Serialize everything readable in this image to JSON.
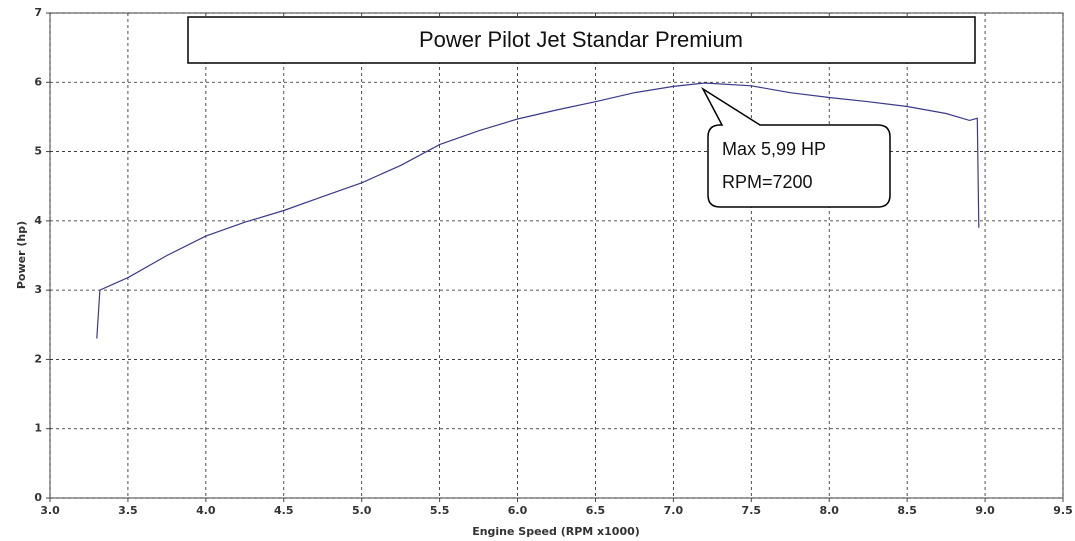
{
  "chart_data": {
    "type": "line",
    "title": "Power Pilot Jet Standar Premium",
    "x_label": "Engine Speed (RPM x1000)",
    "y_label": "Power (hp)",
    "annotation": [
      "Max 5,99 HP",
      "RPM=7200"
    ],
    "x": [
      3.3,
      3.32,
      3.4,
      3.5,
      3.75,
      4.0,
      4.25,
      4.5,
      4.75,
      5.0,
      5.25,
      5.5,
      5.75,
      6.0,
      6.25,
      6.5,
      6.75,
      7.0,
      7.2,
      7.5,
      7.75,
      8.0,
      8.25,
      8.5,
      8.75,
      8.9,
      8.95,
      8.96
    ],
    "values": [
      2.3,
      3.0,
      3.08,
      3.18,
      3.5,
      3.78,
      3.98,
      4.15,
      4.35,
      4.55,
      4.8,
      5.1,
      5.3,
      5.47,
      5.6,
      5.72,
      5.85,
      5.94,
      5.99,
      5.95,
      5.85,
      5.78,
      5.72,
      5.65,
      5.55,
      5.45,
      5.48,
      3.9
    ],
    "color": "#3a3a8c",
    "xlim": [
      3,
      9.5
    ],
    "xticks": [
      {
        "value": 3,
        "label": "3.0"
      },
      3.5,
      {
        "value": 4,
        "label": "4.0"
      },
      4.5,
      {
        "value": 5,
        "label": "5.0"
      },
      5.5,
      {
        "value": 6,
        "label": "6.0"
      },
      6.5,
      {
        "value": 7,
        "label": "7.0"
      },
      7.5,
      {
        "value": 8,
        "label": "8.0"
      },
      8.5,
      {
        "value": 9,
        "label": "9.0"
      },
      9.5
    ],
    "ylim": [
      0,
      7
    ],
    "yticks": [
      0,
      1,
      2,
      3,
      4,
      5,
      6,
      7
    ],
    "grid": true
  }
}
